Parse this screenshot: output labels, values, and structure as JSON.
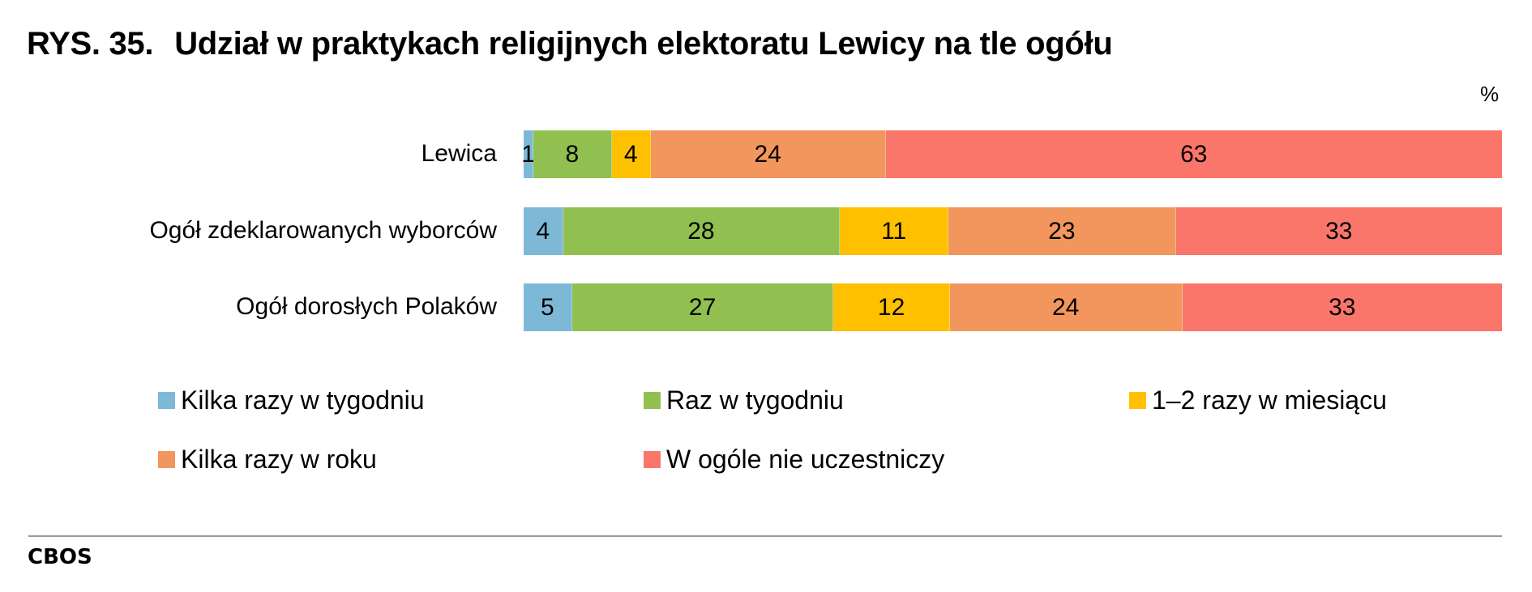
{
  "title": {
    "number": "RYS. 35.",
    "text": "Udział w praktykach religijnych elektoratu Lewicy na tle ogółu"
  },
  "unit": "%",
  "source": "CBOS",
  "colors": {
    "kilka_razy_w_tygodniu": "#7db9d7",
    "raz_w_tygodniu": "#92c050",
    "raz_dwa_w_miesiacu": "#ffc000",
    "kilka_razy_w_roku": "#f2965e",
    "w_ogole": "#fa766b"
  },
  "legend": [
    {
      "label": "Kilka razy w tygodniu",
      "color": "#7db9d7"
    },
    {
      "label": "Raz w tygodniu",
      "color": "#92c050"
    },
    {
      "label": "1–2 razy w miesiącu",
      "color": "#ffc000"
    },
    {
      "label": "Kilka razy w roku",
      "color": "#f2965e"
    },
    {
      "label": "W ogóle nie uczestniczy",
      "color": "#fa766b"
    }
  ],
  "rows": [
    {
      "label": "Lewica",
      "values": [
        1,
        8,
        4,
        24,
        63
      ]
    },
    {
      "label": "Ogół zdeklarowanych wyborców",
      "values": [
        4,
        28,
        11,
        23,
        33
      ]
    },
    {
      "label": "Ogół dorosłych Polaków",
      "values": [
        5,
        27,
        12,
        24,
        33
      ]
    }
  ],
  "chart_data": {
    "type": "bar",
    "orientation": "horizontal",
    "stacked": true,
    "title": "RYS. 35. Udział w praktykach religijnych elektoratu Lewicy na tle ogółu",
    "xlabel": "%",
    "ylabel": "",
    "categories": [
      "Lewica",
      "Ogół zdeklarowanych wyborców",
      "Ogół dorosłych Polaków"
    ],
    "series": [
      {
        "name": "Kilka razy w tygodniu",
        "values": [
          1,
          4,
          5
        ],
        "color": "#7db9d7"
      },
      {
        "name": "Raz w tygodniu",
        "values": [
          8,
          28,
          27
        ],
        "color": "#92c050"
      },
      {
        "name": "1–2 razy w miesiącu",
        "values": [
          4,
          11,
          12
        ],
        "color": "#ffc000"
      },
      {
        "name": "Kilka razy w roku",
        "values": [
          24,
          23,
          24
        ],
        "color": "#f2965e"
      },
      {
        "name": "W ogóle nie uczestniczy",
        "values": [
          63,
          33,
          33
        ],
        "color": "#fa766b"
      }
    ],
    "xlim": [
      0,
      100
    ],
    "grid": false,
    "data_labels": true,
    "legend_position": "bottom",
    "source": "CBOS"
  }
}
